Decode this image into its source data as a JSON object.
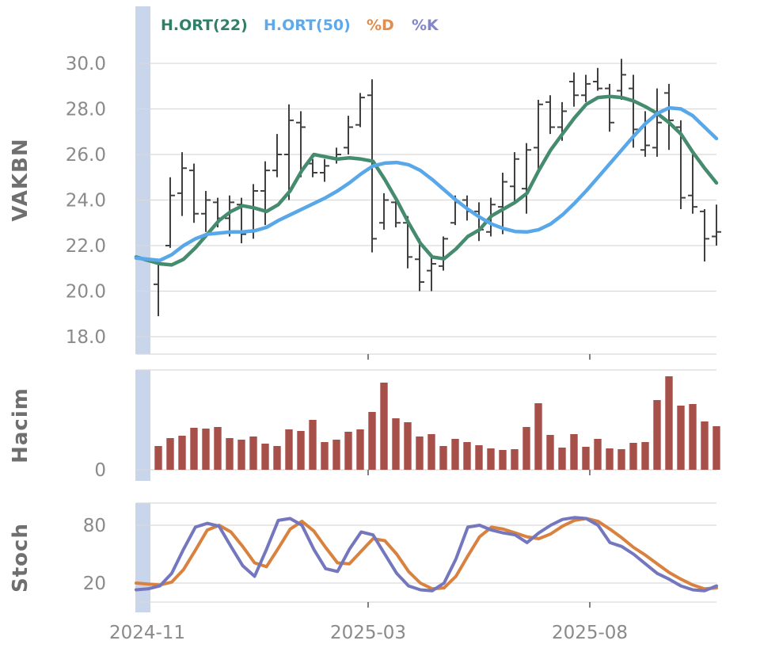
{
  "symbol": "VAKBN",
  "legend": {
    "items": [
      {
        "label": "H.ORT(22)",
        "color": "#2f8068"
      },
      {
        "label": "H.ORT(50)",
        "color": "#5fa8ea"
      },
      {
        "label": "%D",
        "color": "#e08d4d"
      },
      {
        "label": "%K",
        "color": "#8286c9"
      }
    ]
  },
  "panels": {
    "price": {
      "label": "VAKBN"
    },
    "volume": {
      "label": "Hacim"
    },
    "stoch": {
      "label": "Stoch"
    }
  },
  "xaxis": {
    "tick_labels": [
      "2024-11",
      "2025-03",
      "2025-08"
    ]
  },
  "colors": {
    "background": "#ffffff",
    "grid": "#d9d9d9",
    "highlight": "#c9d5eb",
    "ohlc": "#404040",
    "tick_text": "#8a8a8a",
    "panel_title": "#6f6f6f",
    "axis_tick": "#555555"
  },
  "chart_data": [
    {
      "type": "ohlc",
      "panel": "price",
      "ylabel": "VAKBN",
      "x_unit": "week",
      "x_range": [
        "2024-11",
        "2025-10"
      ],
      "yticks": [
        30.0,
        28.0,
        26.0,
        24.0,
        22.0,
        20.0,
        18.0
      ],
      "ylim": [
        17.3,
        30.55
      ],
      "ohlc": [
        [
          20.3,
          21.4,
          18.9,
          21.2
        ],
        [
          22.0,
          25.0,
          21.9,
          24.2
        ],
        [
          24.3,
          26.1,
          23.3,
          25.4
        ],
        [
          25.3,
          25.6,
          23.0,
          23.4
        ],
        [
          23.4,
          24.4,
          22.6,
          24.0
        ],
        [
          23.9,
          24.1,
          22.8,
          23.2
        ],
        [
          23.2,
          24.2,
          22.4,
          23.9
        ],
        [
          23.8,
          24.1,
          22.1,
          22.5
        ],
        [
          22.6,
          24.7,
          22.3,
          24.4
        ],
        [
          24.4,
          25.7,
          22.9,
          25.3
        ],
        [
          25.3,
          26.9,
          25.0,
          26.0
        ],
        [
          26.0,
          28.2,
          24.0,
          27.5
        ],
        [
          27.4,
          27.9,
          25.0,
          27.2
        ],
        [
          25.6,
          25.8,
          25.0,
          25.2
        ],
        [
          25.2,
          25.8,
          24.8,
          25.5
        ],
        [
          25.8,
          26.3,
          25.6,
          26.0
        ],
        [
          26.3,
          27.7,
          26.0,
          27.2
        ],
        [
          27.3,
          28.7,
          27.2,
          28.5
        ],
        [
          28.6,
          29.3,
          21.7,
          22.3
        ],
        [
          23.0,
          24.3,
          22.7,
          24.0
        ],
        [
          23.9,
          24.0,
          22.8,
          23.0
        ],
        [
          23.0,
          23.3,
          21.0,
          21.5
        ],
        [
          21.4,
          22.3,
          20.0,
          20.4
        ],
        [
          20.9,
          21.5,
          20.0,
          21.2
        ],
        [
          21.1,
          22.4,
          20.9,
          22.3
        ],
        [
          23.0,
          24.2,
          22.9,
          23.9
        ],
        [
          24.0,
          24.2,
          23.1,
          23.5
        ],
        [
          23.5,
          23.9,
          22.2,
          22.7
        ],
        [
          22.6,
          24.1,
          22.4,
          23.8
        ],
        [
          23.7,
          25.2,
          22.5,
          24.8
        ],
        [
          24.6,
          26.1,
          23.9,
          25.8
        ],
        [
          24.5,
          26.5,
          23.4,
          26.2
        ],
        [
          26.3,
          28.4,
          25.2,
          28.2
        ],
        [
          28.3,
          28.6,
          26.9,
          27.2
        ],
        [
          27.2,
          28.3,
          26.6,
          27.9
        ],
        [
          29.2,
          29.6,
          28.1,
          28.6
        ],
        [
          28.6,
          29.5,
          28.3,
          29.1
        ],
        [
          29.2,
          29.8,
          28.8,
          28.9
        ],
        [
          28.9,
          29.1,
          27.0,
          27.4
        ],
        [
          28.8,
          30.2,
          28.4,
          29.5
        ],
        [
          28.9,
          29.5,
          26.3,
          27.1
        ],
        [
          26.2,
          27.9,
          25.9,
          26.4
        ],
        [
          26.3,
          28.9,
          25.9,
          27.4
        ],
        [
          28.7,
          29.1,
          26.2,
          27.5
        ],
        [
          27.2,
          27.5,
          23.6,
          24.1
        ],
        [
          24.2,
          26.0,
          23.4,
          23.7
        ],
        [
          23.5,
          23.6,
          21.3,
          22.3
        ],
        [
          22.4,
          23.8,
          22.0,
          22.6
        ]
      ],
      "series": [
        {
          "name": "H.ORT(22)",
          "color": "#458b6e",
          "values": [
            21.5,
            21.35,
            21.2,
            21.15,
            21.4,
            21.9,
            22.5,
            23.1,
            23.5,
            23.75,
            23.65,
            23.5,
            23.8,
            24.4,
            25.3,
            26.0,
            25.9,
            25.8,
            25.85,
            25.8,
            25.7,
            24.9,
            24.0,
            23.0,
            22.1,
            21.5,
            21.42,
            21.85,
            22.4,
            22.7,
            23.3,
            23.6,
            23.9,
            24.3,
            25.3,
            26.2,
            26.9,
            27.6,
            28.2,
            28.5,
            28.55,
            28.5,
            28.35,
            28.1,
            27.8,
            27.4,
            26.9,
            26.1,
            25.4,
            24.75
          ]
        },
        {
          "name": "H.ORT(50)",
          "color": "#58a7e8",
          "values": [
            21.45,
            21.4,
            21.35,
            21.6,
            22.0,
            22.3,
            22.5,
            22.55,
            22.6,
            22.6,
            22.65,
            22.8,
            23.1,
            23.35,
            23.6,
            23.85,
            24.1,
            24.4,
            24.75,
            25.15,
            25.5,
            25.62,
            25.65,
            25.55,
            25.3,
            24.9,
            24.45,
            24.0,
            23.6,
            23.25,
            22.95,
            22.75,
            22.62,
            22.6,
            22.7,
            22.95,
            23.35,
            23.85,
            24.4,
            25.0,
            25.6,
            26.2,
            26.8,
            27.35,
            27.8,
            28.05,
            28.0,
            27.7,
            27.2,
            26.7
          ]
        }
      ]
    },
    {
      "type": "bar",
      "panel": "volume",
      "ylabel": "Hacim",
      "yticks": [
        0
      ],
      "color": "#a75049",
      "values": [
        30,
        40,
        43,
        53,
        52,
        54,
        40,
        38,
        42,
        33,
        30,
        51,
        49,
        63,
        35,
        38,
        48,
        51,
        73,
        110,
        65,
        60,
        42,
        45,
        30,
        39,
        35,
        31,
        27,
        25,
        26,
        54,
        84,
        44,
        28,
        45,
        29,
        39,
        27,
        26,
        34,
        35,
        88,
        118,
        81,
        83,
        61,
        55
      ]
    },
    {
      "type": "line",
      "panel": "stoch",
      "ylabel": "Stoch",
      "yticks": [
        80,
        20
      ],
      "ylim": [
        0,
        103
      ],
      "series": [
        {
          "name": "%D",
          "color": "#d9823f",
          "values": [
            20,
            19,
            18,
            21,
            34,
            54,
            75,
            80,
            73,
            58,
            41,
            37,
            56,
            76,
            84,
            74,
            57,
            41,
            40,
            53,
            66,
            64,
            50,
            32,
            20,
            14,
            15,
            27,
            48,
            68,
            78,
            76,
            72,
            68,
            66,
            71,
            79,
            85,
            87,
            84,
            76,
            67,
            57,
            49,
            40,
            31,
            24,
            18,
            14,
            15
          ]
        },
        {
          "name": "%K",
          "color": "#7477bd",
          "values": [
            13,
            14,
            17,
            30,
            55,
            78,
            82,
            79,
            58,
            38,
            27,
            55,
            85,
            87,
            80,
            55,
            35,
            32,
            55,
            73,
            70,
            50,
            30,
            17,
            13,
            12,
            20,
            45,
            78,
            80,
            75,
            72,
            70,
            62,
            72,
            80,
            86,
            88,
            87,
            80,
            62,
            58,
            50,
            40,
            30,
            24,
            17,
            13,
            12,
            17
          ]
        }
      ]
    }
  ]
}
